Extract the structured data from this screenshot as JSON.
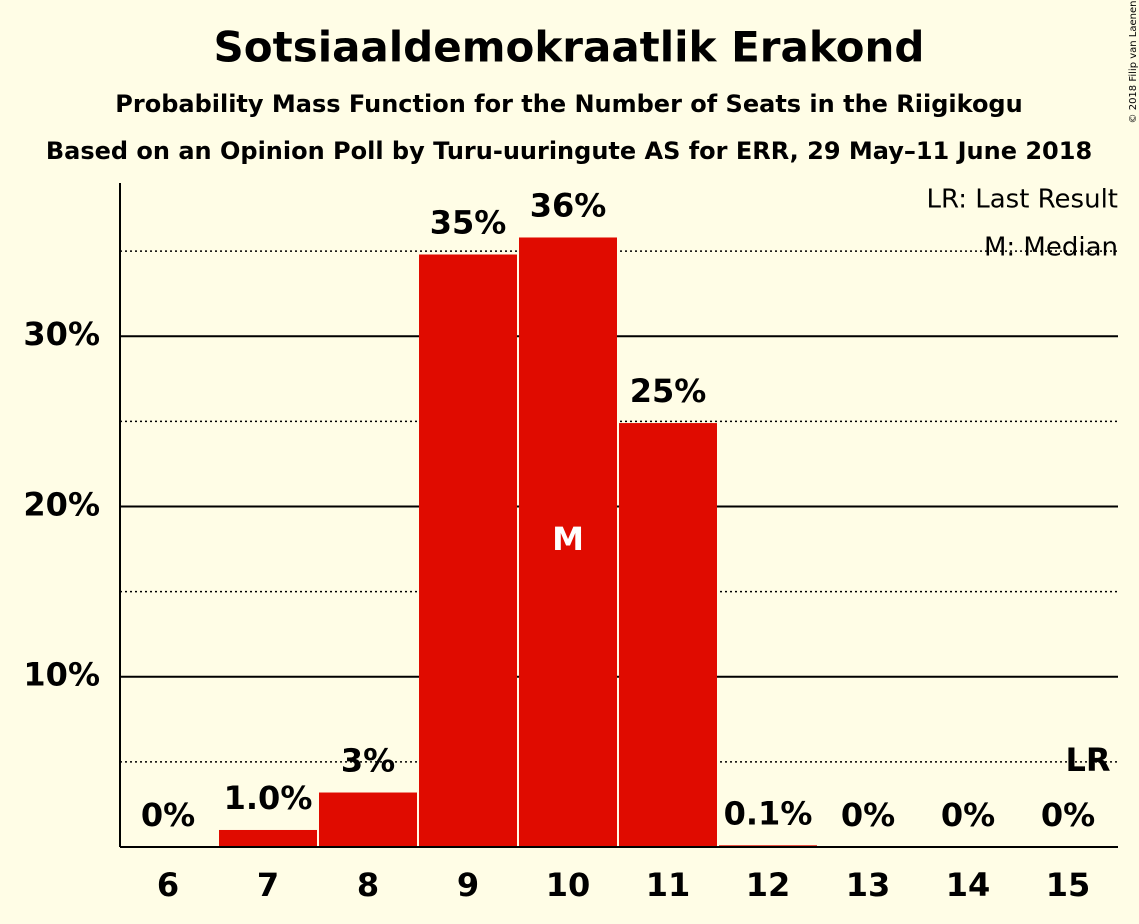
{
  "chart_data": {
    "type": "bar",
    "title": "Sotsiaaldemokraatlik Erakond",
    "subtitle": "Probability Mass Function for the Number of Seats in the Riigikogu",
    "subtitle2": "Based on an Opinion Poll by Turu-uuringute AS for ERR, 29 May–11 June 2018",
    "copyright": "© 2018 Filip van Laenen",
    "categories": [
      "6",
      "7",
      "8",
      "9",
      "10",
      "11",
      "12",
      "13",
      "14",
      "15"
    ],
    "values": [
      0,
      1.0,
      3.2,
      34.8,
      35.8,
      24.9,
      0.1,
      0,
      0,
      0
    ],
    "value_labels": [
      "0%",
      "1.0%",
      "3%",
      "35%",
      "36%",
      "25%",
      "0.1%",
      "0%",
      "0%",
      "0%"
    ],
    "color": "#e00b00",
    "ylim": [
      0,
      39
    ],
    "yticks": [
      {
        "value": 10,
        "label": "10%"
      },
      {
        "value": 20,
        "label": "20%"
      },
      {
        "value": 30,
        "label": "30%"
      }
    ],
    "minor_yticks": [
      5,
      15,
      25,
      35
    ],
    "grid": true,
    "legend": [
      "LR: Last Result",
      "M: Median"
    ],
    "markers": [
      {
        "label": "M",
        "category": "10"
      },
      {
        "label": "LR",
        "category": "15"
      }
    ]
  }
}
